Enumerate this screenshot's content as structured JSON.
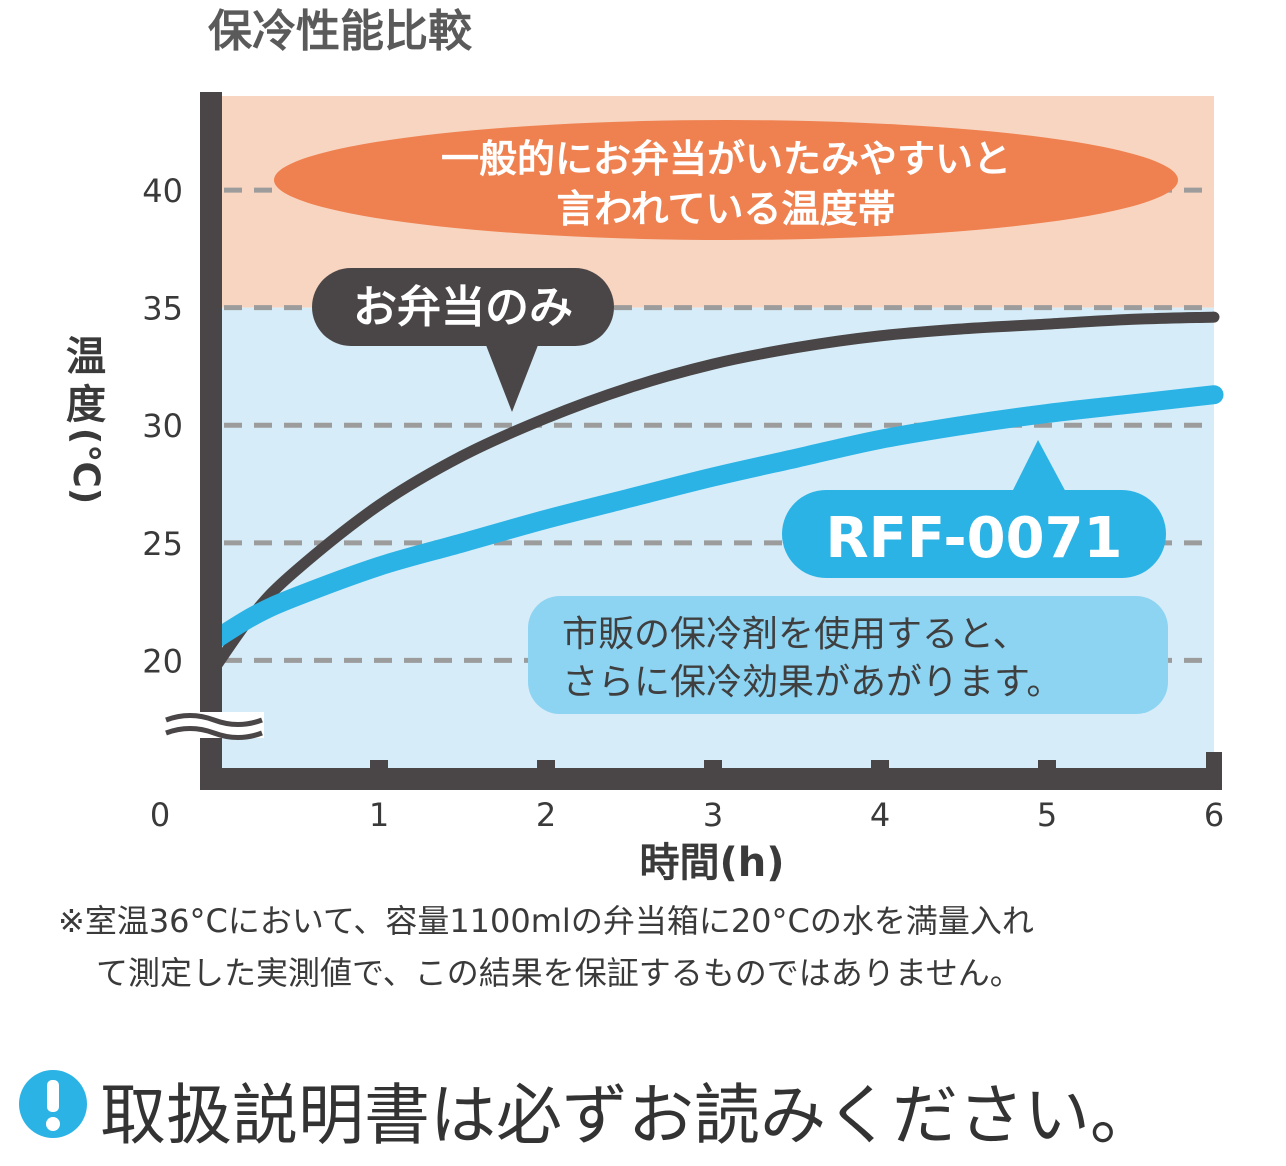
{
  "chart_data": {
    "type": "line",
    "title": "保冷性能比較",
    "xlabel": "時間(h)",
    "ylabel_chars": [
      "温",
      "度",
      "(℃)"
    ],
    "x_ticks": [
      "0",
      "1",
      "2",
      "3",
      "4",
      "5",
      "6"
    ],
    "y_ticks": [
      "20",
      "25",
      "30",
      "35",
      "40"
    ],
    "xlim": [
      0,
      6
    ],
    "ylim": [
      15,
      44
    ],
    "y_axis_break": true,
    "grid": "dashed horizontal at 20, 25, 30, 35, 40",
    "zones": [
      {
        "label": "一般的にお弁当がいたみやすいと言われている温度帯",
        "from": 35,
        "to": 44,
        "color": "#f8d5c1"
      },
      {
        "label": "",
        "from": 15,
        "to": 35,
        "color": "#d6ecf8"
      }
    ],
    "series": [
      {
        "name": "お弁当のみ",
        "color": "#4a4647",
        "x": [
          0,
          0.25,
          0.5,
          1,
          1.5,
          2,
          2.5,
          3,
          3.5,
          4,
          4.5,
          5,
          5.5,
          6
        ],
        "y": [
          19.5,
          22.0,
          23.8,
          26.6,
          28.7,
          30.3,
          31.6,
          32.6,
          33.3,
          33.8,
          34.1,
          34.3,
          34.5,
          34.6
        ]
      },
      {
        "name": "RFF-0071",
        "color": "#2bb3e6",
        "x": [
          0,
          0.25,
          0.5,
          1,
          1.5,
          2,
          2.5,
          3,
          3.5,
          4,
          4.5,
          5,
          5.5,
          6
        ],
        "y": [
          20.8,
          21.9,
          22.7,
          24.0,
          25.0,
          26.0,
          26.9,
          27.8,
          28.6,
          29.4,
          30.0,
          30.5,
          30.9,
          31.3
        ]
      }
    ],
    "annotations": {
      "zone_label_lines": [
        "一般的にお弁当がいたみやすいと",
        "言われている温度帯"
      ],
      "series1_callout": "お弁当のみ",
      "series2_callout": "RFF-0071",
      "tip_lines": [
        "市販の保冷剤を使用すると、",
        "さらに保冷効果があがります。"
      ]
    },
    "colors": {
      "zone_hot": "#f8d5c1",
      "zone_cool": "#d6ecf8",
      "zone_label_bg": "#ef8150",
      "axis": "#4a4647",
      "grid": "#9c9c9c",
      "tip_bg": "#8dd3f2"
    }
  },
  "footnote_lines": [
    "※室温36°Cにおいて、容量1100mlの弁当箱に20°Cの水を満量入れ",
    "て測定した実測値で、この結果を保証するものではありません。"
  ],
  "notice": {
    "icon": "exclamation-circle-icon",
    "icon_color": "#2bb3e6",
    "text": "取扱説明書は必ずお読みください。"
  }
}
